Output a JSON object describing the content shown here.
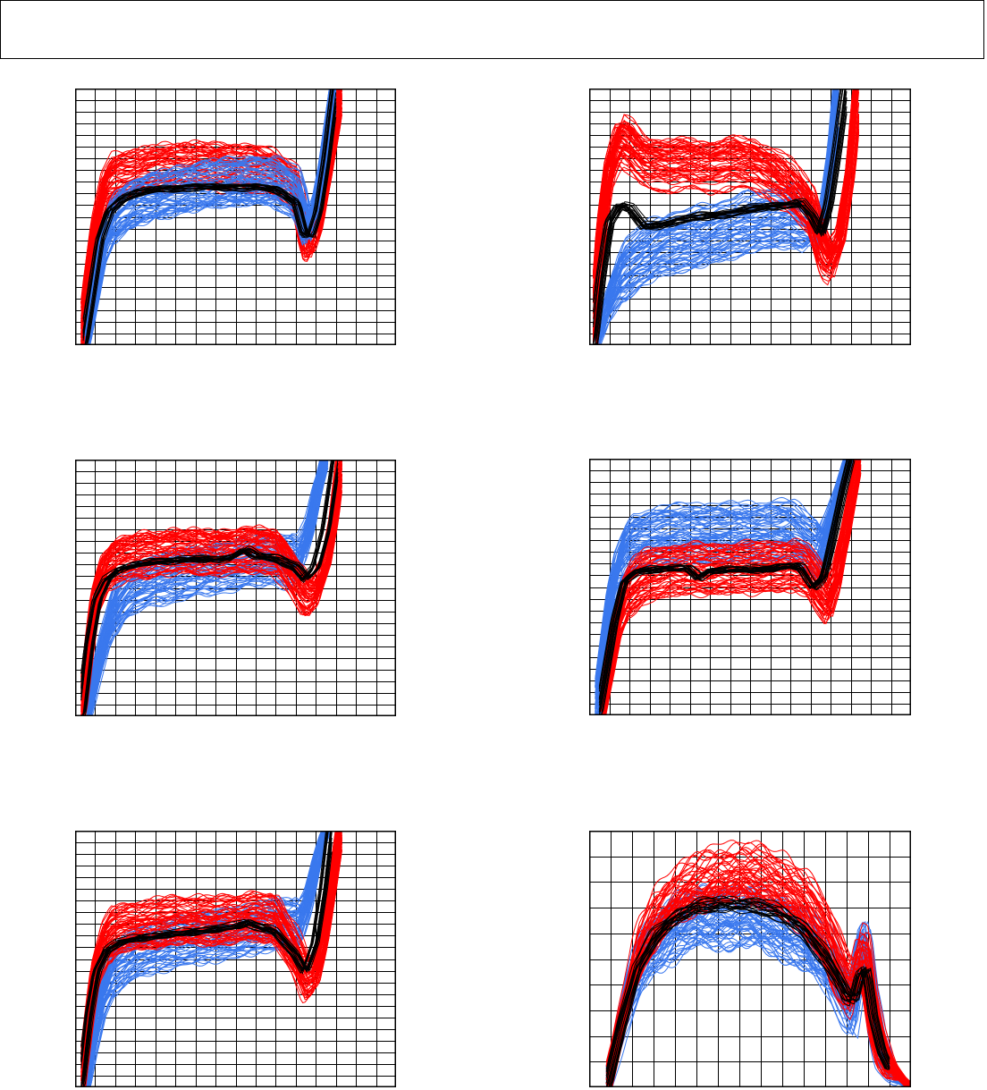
{
  "header": {
    "text": ""
  },
  "colors": {
    "red": "#ff0000",
    "blue": "#3a78ee",
    "black": "#000000",
    "grid": "#000000"
  },
  "chart_data": [
    {
      "type": "line",
      "grid": {
        "major_columns": 16,
        "major_rows": 22
      },
      "xlim": [
        0,
        16
      ],
      "ylim": [
        0,
        22
      ],
      "series": [
        {
          "color": "red",
          "count": 60,
          "x": [
            0.3,
            0.6,
            1,
            1.5,
            2,
            3,
            4,
            5,
            6,
            7,
            8,
            9,
            10,
            11,
            11.4,
            11.7,
            12.1,
            12.5,
            13,
            13.3
          ],
          "y": [
            0,
            5,
            10,
            13.5,
            14.3,
            14.7,
            15,
            15.2,
            15.3,
            15.2,
            15.1,
            15,
            14.6,
            13.2,
            9.5,
            9,
            10.5,
            14,
            19,
            23
          ],
          "spread": 2.0
        },
        {
          "color": "blue",
          "count": 60,
          "x": [
            0.5,
            0.9,
            1.3,
            1.8,
            2.3,
            3,
            4,
            5,
            6,
            7,
            8,
            9,
            10,
            11,
            11.3,
            11.6,
            12,
            12.5,
            12.8,
            13
          ],
          "y": [
            0,
            4,
            8,
            10.5,
            11.5,
            12.3,
            12.8,
            13.2,
            13.6,
            13.9,
            14,
            14.1,
            14,
            13,
            12,
            10,
            11.5,
            17,
            20.5,
            23
          ],
          "spread": 2.0
        },
        {
          "color": "black",
          "count": 18,
          "x": [
            0.4,
            0.8,
            1.2,
            1.7,
            2.3,
            3,
            4,
            5,
            6,
            7,
            8,
            9,
            10,
            11,
            11.4,
            11.7,
            12.1,
            12.5,
            13
          ],
          "y": [
            0,
            4.5,
            9,
            11.5,
            12.5,
            13,
            13.3,
            13.4,
            13.5,
            13.5,
            13.5,
            13.5,
            13.3,
            12.2,
            9.5,
            9.3,
            11.5,
            16,
            23
          ],
          "spread": 0.3
        }
      ]
    },
    {
      "type": "line",
      "grid": {
        "major_columns": 16,
        "major_rows": 22
      },
      "xlim": [
        0,
        16
      ],
      "ylim": [
        0,
        22
      ],
      "series": [
        {
          "color": "blue",
          "count": 60,
          "x": [
            0.3,
            0.8,
            1.5,
            2.5,
            3.5,
            5,
            6,
            7,
            8,
            9,
            10,
            10.8,
            11.2,
            11.5,
            11.8,
            12.1,
            12.4
          ],
          "y": [
            0,
            3,
            6,
            7.5,
            8.5,
            9,
            9.5,
            10,
            10.5,
            10.8,
            11,
            10.5,
            10,
            9,
            13,
            17,
            23
          ],
          "spread": 2.6
        },
        {
          "color": "red",
          "count": 60,
          "x": [
            0.2,
            0.6,
            1,
            1.5,
            2,
            2.5,
            3,
            4,
            5,
            6,
            7,
            8,
            9,
            10,
            11,
            11.5,
            12,
            12.5,
            13,
            13.4
          ],
          "y": [
            0,
            10,
            15,
            17.5,
            17,
            16,
            15.6,
            15.4,
            15.5,
            15.3,
            15.6,
            15.5,
            14.8,
            13.5,
            11.5,
            8.5,
            7,
            9,
            15,
            23
          ],
          "spread": 2.2
        },
        {
          "color": "black",
          "count": 18,
          "x": [
            0.2,
            0.6,
            1,
            1.5,
            2,
            2.7,
            3.5,
            4.5,
            5.5,
            6.5,
            7.5,
            8.5,
            9.5,
            10.5,
            11.1,
            11.5,
            11.9,
            12.3,
            12.8
          ],
          "y": [
            0,
            6,
            10.5,
            12,
            11.8,
            10.2,
            10.3,
            10.8,
            11,
            11.2,
            11.5,
            11.8,
            12,
            12.2,
            11,
            9.5,
            12,
            16.5,
            23
          ],
          "spread": 0.3
        }
      ]
    },
    {
      "type": "line",
      "grid": {
        "major_columns": 16,
        "major_rows": 22
      },
      "xlim": [
        0,
        16
      ],
      "ylim": [
        0,
        22
      ],
      "series": [
        {
          "color": "blue",
          "count": 60,
          "x": [
            0.6,
            1,
            1.5,
            2,
            2.5,
            3,
            4,
            5,
            6,
            7,
            8,
            9,
            10,
            10.9,
            11.3,
            11.7,
            12.1,
            12.6
          ],
          "y": [
            0,
            3,
            6.5,
            9,
            10.3,
            11,
            11.7,
            12,
            12.4,
            12.7,
            13,
            13.3,
            13.5,
            13.2,
            13.8,
            16,
            19.5,
            23
          ],
          "spread": 2.2
        },
        {
          "color": "red",
          "count": 60,
          "x": [
            0.3,
            0.7,
            1,
            1.5,
            2,
            3,
            4,
            5,
            6,
            7,
            8,
            9,
            10,
            11,
            11.5,
            12,
            12.5,
            12.9,
            13.3
          ],
          "y": [
            0,
            6,
            10,
            12.6,
            13.4,
            13.9,
            14.1,
            14.3,
            14.3,
            14.2,
            14.3,
            14.5,
            14.3,
            11.8,
            10.5,
            10.7,
            13,
            17,
            23
          ],
          "spread": 2.0
        },
        {
          "color": "black",
          "count": 18,
          "x": [
            0.3,
            0.7,
            1.1,
            1.6,
            2.2,
            3,
            4,
            5,
            6,
            7,
            7.8,
            8.5,
            9,
            10,
            11,
            11.5,
            12,
            12.5,
            12.8,
            13.1
          ],
          "y": [
            0,
            6,
            10,
            11.8,
            12.6,
            13,
            13.3,
            13.4,
            13.5,
            13.5,
            13.6,
            14.3,
            13.8,
            13.6,
            12.8,
            11.8,
            12.8,
            16,
            19.5,
            23
          ],
          "spread": 0.3
        }
      ]
    },
    {
      "type": "line",
      "grid": {
        "major_columns": 16,
        "major_rows": 22
      },
      "xlim": [
        0,
        16
      ],
      "ylim": [
        0,
        22
      ],
      "series": [
        {
          "color": "blue",
          "count": 60,
          "x": [
            0.3,
            0.7,
            1.1,
            1.5,
            2,
            3,
            4,
            5,
            6,
            7,
            8,
            9,
            10,
            11,
            11.5,
            12,
            12.5,
            12.8,
            13.1
          ],
          "y": [
            0,
            5,
            10,
            13,
            14.6,
            15.2,
            15.5,
            15.6,
            15.6,
            15.6,
            15.7,
            15.8,
            15.8,
            14.5,
            14,
            16.5,
            19.5,
            21.5,
            23
          ],
          "spread": 2.6
        },
        {
          "color": "red",
          "count": 60,
          "x": [
            0.6,
            1,
            1.4,
            1.9,
            2.5,
            3,
            4,
            5,
            6,
            7,
            8,
            9,
            10,
            10.8,
            11.4,
            11.9,
            12.3,
            12.7,
            13.1,
            13.5
          ],
          "y": [
            0,
            4,
            8,
            10.5,
            11.5,
            12,
            12.4,
            12.5,
            12.5,
            12.6,
            12.6,
            12.7,
            12.8,
            12.5,
            11,
            9.8,
            11.5,
            15,
            19,
            23
          ],
          "spread": 2.2
        },
        {
          "color": "black",
          "count": 18,
          "x": [
            0.5,
            0.9,
            1.3,
            1.8,
            2.4,
            3,
            4,
            5,
            5.5,
            6,
            7,
            8,
            9,
            10,
            10.6,
            11.2,
            11.7,
            12.2,
            12.7,
            13.2
          ],
          "y": [
            0,
            4,
            8,
            11.5,
            12.3,
            12.5,
            12.6,
            12.6,
            11.8,
            12.4,
            12.5,
            12.5,
            12.6,
            12.8,
            12.7,
            11,
            11.8,
            15.5,
            19.5,
            23
          ],
          "spread": 0.3
        }
      ]
    },
    {
      "type": "line",
      "grid": {
        "major_columns": 16,
        "major_rows": 22
      },
      "xlim": [
        0,
        16
      ],
      "ylim": [
        0,
        22
      ],
      "series": [
        {
          "color": "blue",
          "count": 60,
          "x": [
            0.5,
            0.9,
            1.3,
            1.8,
            2.5,
            3,
            4,
            5,
            6,
            7,
            8,
            9,
            10,
            10.8,
            11.2,
            11.6,
            12,
            12.4,
            12.8
          ],
          "y": [
            0,
            4,
            7.5,
            9.8,
            10.8,
            11.5,
            12,
            12.4,
            12.7,
            13,
            13.2,
            13.6,
            14,
            13.8,
            14,
            15.8,
            19,
            21.5,
            23
          ],
          "spread": 2.2
        },
        {
          "color": "red",
          "count": 60,
          "x": [
            0.3,
            0.7,
            1,
            1.5,
            2,
            3,
            4,
            5,
            6,
            7,
            8,
            9,
            10,
            11,
            11.5,
            12,
            12.4,
            12.8,
            13.3
          ],
          "y": [
            0,
            6,
            10,
            12.6,
            13.4,
            13.9,
            14.1,
            14.3,
            14.4,
            14.3,
            14.4,
            14.8,
            14.4,
            11.5,
            9.5,
            9.8,
            12.5,
            17,
            23
          ],
          "spread": 2.0
        },
        {
          "color": "black",
          "count": 18,
          "x": [
            0.3,
            0.7,
            1.1,
            1.6,
            2.2,
            3,
            4,
            5,
            6,
            7,
            8,
            8.6,
            9.2,
            10,
            11,
            11.5,
            12,
            12.4,
            12.8
          ],
          "y": [
            0,
            6,
            10,
            11.8,
            12.4,
            12.8,
            13,
            13.2,
            13.4,
            13.6,
            13.8,
            14.2,
            13.8,
            13.4,
            11.5,
            10,
            12.5,
            17,
            23
          ],
          "spread": 0.3
        }
      ]
    },
    {
      "type": "line",
      "grid": {
        "major_columns": 15,
        "major_rows": 10
      },
      "xlim": [
        0,
        15
      ],
      "ylim": [
        0,
        10
      ],
      "series": [
        {
          "color": "blue",
          "count": 55,
          "x": [
            0.8,
            1.5,
            2.2,
            3,
            4,
            5,
            6,
            7,
            8,
            9,
            10,
            11,
            11.6,
            12,
            12.3,
            12.6,
            12.9,
            13.2,
            13.6,
            14,
            14.5,
            15
          ],
          "y": [
            0,
            2.5,
            4.5,
            5.6,
            6.2,
            6.5,
            6.6,
            6.6,
            6.5,
            6.2,
            5.7,
            5,
            4.2,
            3.5,
            3.2,
            4.8,
            5.2,
            3,
            1.5,
            0.8,
            0.2,
            0
          ],
          "spread": 1.1
        },
        {
          "color": "red",
          "count": 55,
          "x": [
            0.8,
            1.5,
            2.2,
            3,
            4,
            5,
            6,
            7,
            8,
            9,
            10,
            11,
            11.6,
            12,
            12.3,
            12.6,
            12.9,
            13.2,
            13.6,
            14,
            14.5,
            15
          ],
          "y": [
            0,
            2.8,
            5.2,
            6.6,
            7.6,
            8.1,
            8.4,
            8.5,
            8.4,
            8,
            7.4,
            6.2,
            5,
            4.3,
            4.1,
            5.2,
            5,
            3.2,
            1.8,
            1,
            0.4,
            0
          ],
          "spread": 1.2
        },
        {
          "color": "black",
          "count": 18,
          "x": [
            0.8,
            1.5,
            2.2,
            3,
            4,
            5,
            6,
            7,
            8,
            9,
            10,
            11,
            11.6,
            12,
            12.3,
            12.6,
            12.9,
            13.2,
            13.6,
            14
          ],
          "y": [
            0,
            2.5,
            4.6,
            5.8,
            6.6,
            7,
            7.1,
            7.1,
            7,
            6.7,
            6.1,
            5,
            4.2,
            3.5,
            3.4,
            4.4,
            4.6,
            2.8,
            1.4,
            0.7
          ],
          "spread": 0.3
        }
      ]
    }
  ]
}
